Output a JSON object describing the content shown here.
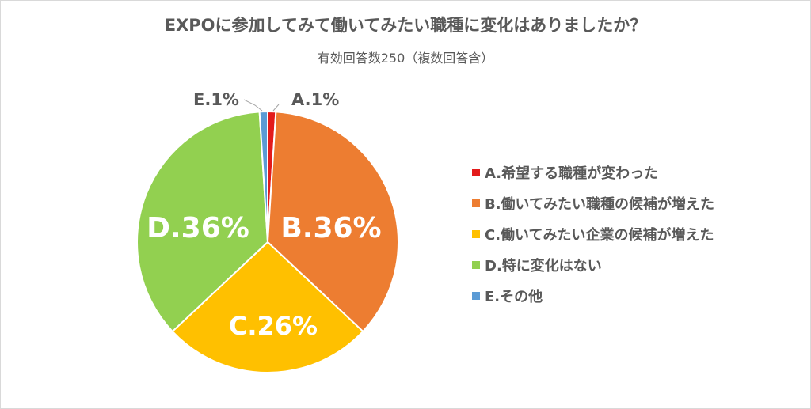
{
  "title": "EXPOに参加してみて働いてみたい職種に変化はありましたか？",
  "subtitle": "有効回答数250（複数回答含）",
  "chart_data": {
    "type": "pie",
    "title": "EXPOに参加してみて働いてみたい職種に変化はありましたか？",
    "subtitle": "有効回答数250（複数回答含）",
    "legend_position": "right",
    "slices": [
      {
        "key": "A",
        "label": "A.希望する職種が変わった",
        "value": 1,
        "data_label": "A.1%",
        "color": "#e31b1b"
      },
      {
        "key": "B",
        "label": "B.働いてみたい職種の候補が増えた",
        "value": 36,
        "data_label": "B.36%",
        "color": "#ed7d31"
      },
      {
        "key": "C",
        "label": "C.働いてみたい企業の候補が増えた",
        "value": 26,
        "data_label": "C.26%",
        "color": "#ffc000"
      },
      {
        "key": "D",
        "label": "D.特に変化はない",
        "value": 36,
        "data_label": "D.36%",
        "color": "#92d050"
      },
      {
        "key": "E",
        "label": "E.その他",
        "value": 1,
        "data_label": "E.1%",
        "color": "#5b9bd5"
      }
    ]
  }
}
